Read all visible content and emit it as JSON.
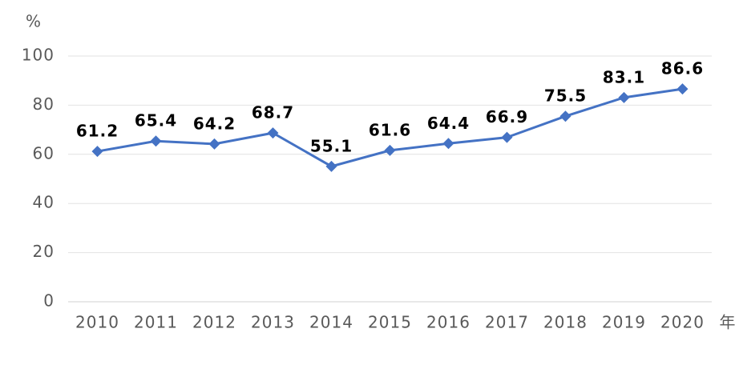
{
  "chart_data": {
    "type": "line",
    "y_unit": "%",
    "x_unit": "年",
    "categories": [
      "2010",
      "2011",
      "2012",
      "2013",
      "2014",
      "2015",
      "2016",
      "2017",
      "2018",
      "2019",
      "2020"
    ],
    "series": [
      {
        "color": "#4472c4",
        "values": [
          61.2,
          65.4,
          64.2,
          68.7,
          55.1,
          61.6,
          64.4,
          66.9,
          75.5,
          83.1,
          86.6
        ]
      }
    ],
    "ylim": [
      0,
      100
    ],
    "yticks": [
      0,
      20,
      40,
      60,
      80,
      100
    ],
    "grid": true
  }
}
